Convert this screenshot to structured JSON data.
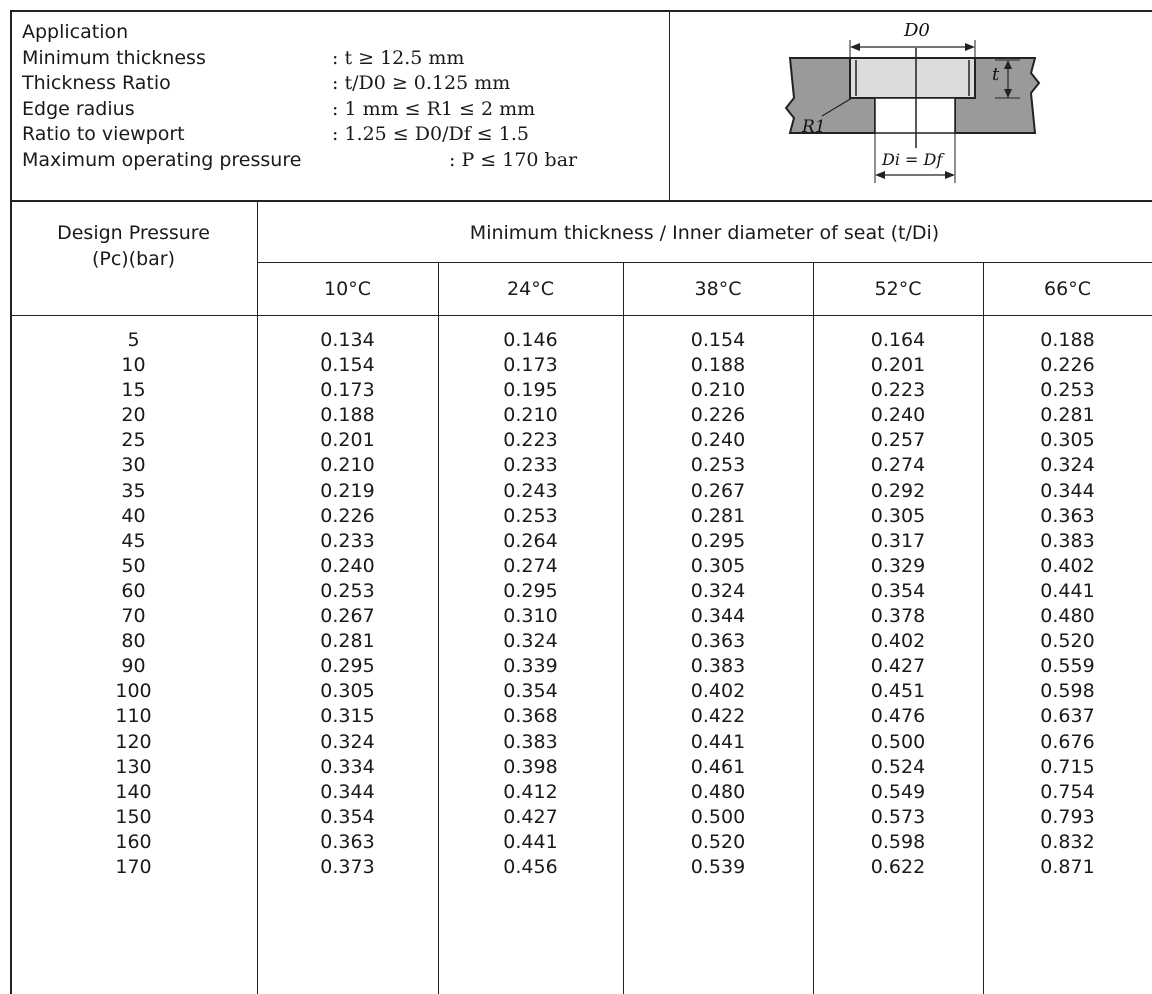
{
  "application": {
    "heading": "Application",
    "rows": [
      {
        "label": "Minimum thickness",
        "value": ": t ≥ 12.5 mm"
      },
      {
        "label": "Thickness Ratio",
        "value": ": t/D0 ≥ 0.125 mm"
      },
      {
        "label": "Edge radius",
        "value": ": 1 mm ≤ R1 ≤ 2 mm"
      },
      {
        "label": "Ratio to viewport",
        "value": ": 1.25 ≤ D0/Df ≤ 1.5"
      },
      {
        "label": "Maximum operating pressure",
        "value": ": P ≤ 170 bar"
      }
    ]
  },
  "diagram": {
    "d0_label": "D0",
    "t_label": "t",
    "r1_label": "R1",
    "di_label": "Di = Df"
  },
  "table": {
    "pressure_header_line1": "Design Pressure",
    "pressure_header_line2": "(Pc)(bar)",
    "group_header": "Minimum thickness / Inner diameter of seat (t/Di)",
    "temperatures": [
      "10°C",
      "24°C",
      "38°C",
      "52°C",
      "66°C"
    ],
    "rows": [
      [
        "5",
        "0.134",
        "0.146",
        "0.154",
        "0.164",
        "0.188"
      ],
      [
        "10",
        "0.154",
        "0.173",
        "0.188",
        "0.201",
        "0.226"
      ],
      [
        "15",
        "0.173",
        "0.195",
        "0.210",
        "0.223",
        "0.253"
      ],
      [
        "20",
        "0.188",
        "0.210",
        "0.226",
        "0.240",
        "0.281"
      ],
      [
        "25",
        "0.201",
        "0.223",
        "0.240",
        "0.257",
        "0.305"
      ],
      [
        "30",
        "0.210",
        "0.233",
        "0.253",
        "0.274",
        "0.324"
      ],
      [
        "35",
        "0.219",
        "0.243",
        "0.267",
        "0.292",
        "0.344"
      ],
      [
        "40",
        "0.226",
        "0.253",
        "0.281",
        "0.305",
        "0.363"
      ],
      [
        "45",
        "0.233",
        "0.264",
        "0.295",
        "0.317",
        "0.383"
      ],
      [
        "50",
        "0.240",
        "0.274",
        "0.305",
        "0.329",
        "0.402"
      ],
      [
        "60",
        "0.253",
        "0.295",
        "0.324",
        "0.354",
        "0.441"
      ],
      [
        "70",
        "0.267",
        "0.310",
        "0.344",
        "0.378",
        "0.480"
      ],
      [
        "80",
        "0.281",
        "0.324",
        "0.363",
        "0.402",
        "0.520"
      ],
      [
        "90",
        "0.295",
        "0.339",
        "0.383",
        "0.427",
        "0.559"
      ],
      [
        "100",
        "0.305",
        "0.354",
        "0.402",
        "0.451",
        "0.598"
      ],
      [
        "110",
        "0.315",
        "0.368",
        "0.422",
        "0.476",
        "0.637"
      ],
      [
        "120",
        "0.324",
        "0.383",
        "0.441",
        "0.500",
        "0.676"
      ],
      [
        "130",
        "0.334",
        "0.398",
        "0.461",
        "0.524",
        "0.715"
      ],
      [
        "140",
        "0.344",
        "0.412",
        "0.480",
        "0.549",
        "0.754"
      ],
      [
        "150",
        "0.354",
        "0.427",
        "0.500",
        "0.573",
        "0.793"
      ],
      [
        "160",
        "0.363",
        "0.441",
        "0.520",
        "0.598",
        "0.832"
      ],
      [
        "170",
        "0.373",
        "0.456",
        "0.539",
        "0.622",
        "0.871"
      ]
    ]
  }
}
